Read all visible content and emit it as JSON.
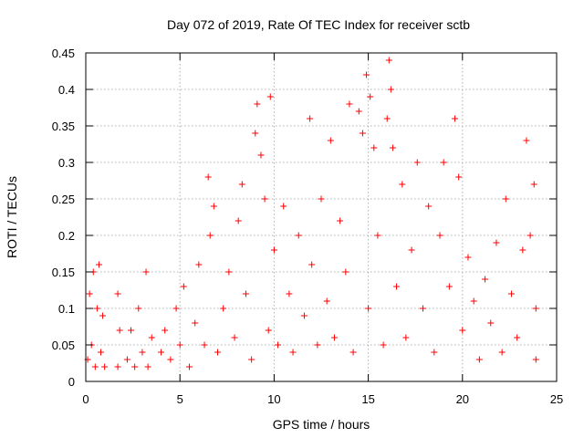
{
  "chart_data": {
    "type": "scatter",
    "title": "Day 072 of 2019, Rate Of TEC Index for receiver sctb",
    "xlabel": "GPS time / hours",
    "ylabel": "ROTI / TECUs",
    "xlim": [
      0,
      25
    ],
    "ylim": [
      0,
      0.45
    ],
    "xticks": [
      0,
      5,
      10,
      15,
      20,
      25
    ],
    "yticks": [
      0,
      0.05,
      0.1,
      0.15,
      0.2,
      0.25,
      0.3,
      0.35,
      0.4,
      0.45
    ],
    "grid": true,
    "marker": "+",
    "series": [
      {
        "name": "ROTI",
        "color": "#ff0000",
        "points": [
          [
            0.1,
            0.03
          ],
          [
            0.2,
            0.12
          ],
          [
            0.3,
            0.05
          ],
          [
            0.4,
            0.15
          ],
          [
            0.5,
            0.02
          ],
          [
            0.6,
            0.1
          ],
          [
            0.7,
            0.16
          ],
          [
            0.8,
            0.04
          ],
          [
            0.9,
            0.09
          ],
          [
            1.0,
            0.02
          ],
          [
            1.7,
            0.02
          ],
          [
            1.7,
            0.12
          ],
          [
            1.8,
            0.07
          ],
          [
            2.2,
            0.03
          ],
          [
            2.4,
            0.07
          ],
          [
            2.6,
            0.02
          ],
          [
            2.8,
            0.1
          ],
          [
            3.0,
            0.04
          ],
          [
            3.2,
            0.15
          ],
          [
            3.3,
            0.02
          ],
          [
            3.5,
            0.06
          ],
          [
            4.0,
            0.04
          ],
          [
            4.2,
            0.07
          ],
          [
            4.5,
            0.03
          ],
          [
            4.8,
            0.1
          ],
          [
            5.0,
            0.05
          ],
          [
            5.2,
            0.13
          ],
          [
            5.5,
            0.02
          ],
          [
            5.8,
            0.08
          ],
          [
            6.0,
            0.16
          ],
          [
            6.3,
            0.05
          ],
          [
            6.5,
            0.28
          ],
          [
            6.6,
            0.2
          ],
          [
            6.8,
            0.24
          ],
          [
            7.0,
            0.04
          ],
          [
            7.3,
            0.1
          ],
          [
            7.6,
            0.15
          ],
          [
            7.9,
            0.06
          ],
          [
            8.1,
            0.22
          ],
          [
            8.3,
            0.27
          ],
          [
            8.5,
            0.12
          ],
          [
            8.8,
            0.03
          ],
          [
            9.0,
            0.34
          ],
          [
            9.1,
            0.38
          ],
          [
            9.3,
            0.31
          ],
          [
            9.5,
            0.25
          ],
          [
            9.7,
            0.07
          ],
          [
            9.8,
            0.39
          ],
          [
            10.0,
            0.18
          ],
          [
            10.2,
            0.05
          ],
          [
            10.5,
            0.24
          ],
          [
            10.8,
            0.12
          ],
          [
            11.0,
            0.04
          ],
          [
            11.3,
            0.2
          ],
          [
            11.6,
            0.09
          ],
          [
            11.9,
            0.36
          ],
          [
            12.0,
            0.16
          ],
          [
            12.3,
            0.05
          ],
          [
            12.5,
            0.25
          ],
          [
            12.8,
            0.11
          ],
          [
            13.0,
            0.33
          ],
          [
            13.2,
            0.06
          ],
          [
            13.5,
            0.22
          ],
          [
            13.8,
            0.15
          ],
          [
            14.0,
            0.38
          ],
          [
            14.2,
            0.04
          ],
          [
            14.5,
            0.37
          ],
          [
            14.7,
            0.34
          ],
          [
            14.9,
            0.42
          ],
          [
            15.0,
            0.1
          ],
          [
            15.1,
            0.39
          ],
          [
            15.3,
            0.32
          ],
          [
            15.5,
            0.2
          ],
          [
            15.8,
            0.05
          ],
          [
            16.0,
            0.36
          ],
          [
            16.1,
            0.44
          ],
          [
            16.2,
            0.4
          ],
          [
            16.3,
            0.32
          ],
          [
            16.5,
            0.13
          ],
          [
            16.8,
            0.27
          ],
          [
            17.0,
            0.06
          ],
          [
            17.3,
            0.18
          ],
          [
            17.6,
            0.3
          ],
          [
            17.9,
            0.1
          ],
          [
            18.2,
            0.24
          ],
          [
            18.5,
            0.04
          ],
          [
            18.8,
            0.2
          ],
          [
            19.0,
            0.3
          ],
          [
            19.3,
            0.13
          ],
          [
            19.6,
            0.36
          ],
          [
            19.8,
            0.28
          ],
          [
            20.0,
            0.07
          ],
          [
            20.3,
            0.17
          ],
          [
            20.6,
            0.11
          ],
          [
            20.9,
            0.03
          ],
          [
            21.2,
            0.14
          ],
          [
            21.5,
            0.08
          ],
          [
            21.8,
            0.19
          ],
          [
            22.1,
            0.04
          ],
          [
            22.3,
            0.25
          ],
          [
            22.6,
            0.12
          ],
          [
            22.9,
            0.06
          ],
          [
            23.2,
            0.18
          ],
          [
            23.4,
            0.33
          ],
          [
            23.6,
            0.2
          ],
          [
            23.8,
            0.27
          ],
          [
            23.9,
            0.1
          ],
          [
            23.9,
            0.03
          ]
        ]
      }
    ]
  }
}
